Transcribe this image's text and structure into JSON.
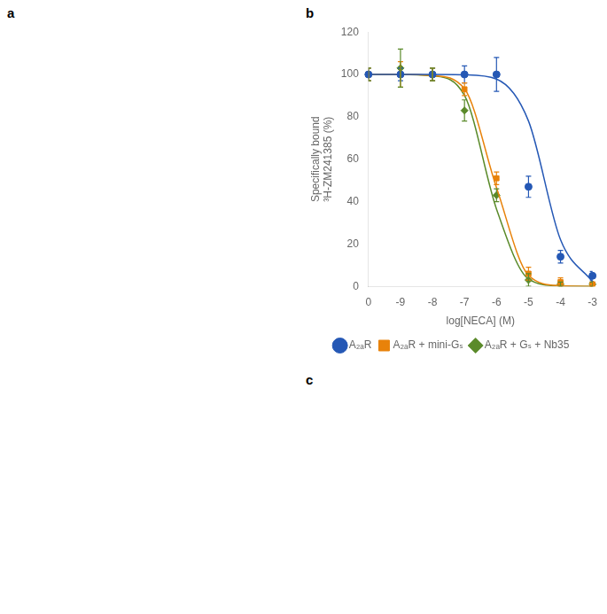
{
  "chart_data": {
    "type": "scatter",
    "annotations": [
      "a",
      "b",
      "c"
    ],
    "xlabel": "log[NECA] (M)",
    "ylabel": [
      "Specifically bound",
      "³H-ZM241385 (%)"
    ],
    "categories": [
      "0",
      "-9",
      "-8",
      "-7",
      "-6",
      "-5",
      "-4",
      "-3"
    ],
    "ylim": [
      0,
      120
    ],
    "yticks": [
      0,
      20,
      40,
      60,
      80,
      100,
      120
    ],
    "grid": false,
    "legend": "bottom",
    "series": [
      {
        "name": "A₂ₐR",
        "color": "#2558b5",
        "marker": "circle",
        "values": [
          100,
          100,
          100,
          100,
          100,
          47,
          14,
          5
        ],
        "errors": [
          3,
          3,
          3,
          4,
          8,
          5,
          3,
          2
        ],
        "fit": [
          100.0,
          100.0,
          100.0,
          99.8,
          97.8,
          78.0,
          22.0,
          2.2
        ]
      },
      {
        "name": "A₂ₐR + mini-Gₛ",
        "color": "#e8820a",
        "marker": "square",
        "values": [
          100,
          100,
          100,
          93,
          51,
          6,
          2,
          1
        ],
        "errors": [
          3,
          6,
          3,
          3,
          3,
          3,
          2,
          1
        ],
        "fit": [
          100.0,
          100.0,
          99.5,
          93.2,
          46.6,
          5.2,
          0.3,
          0.0
        ]
      },
      {
        "name": "A₂ₐR + Gₛ + Nb35",
        "color": "#5a8a2a",
        "marker": "diamond",
        "values": [
          100,
          103,
          100,
          83,
          43,
          3,
          1,
          1
        ],
        "errors": [
          3,
          9,
          3,
          5,
          3,
          3,
          1,
          1
        ],
        "fit": [
          100.0,
          100.0,
          99.3,
          90.1,
          36.5,
          3.5,
          0.2,
          0.0
        ]
      }
    ]
  }
}
